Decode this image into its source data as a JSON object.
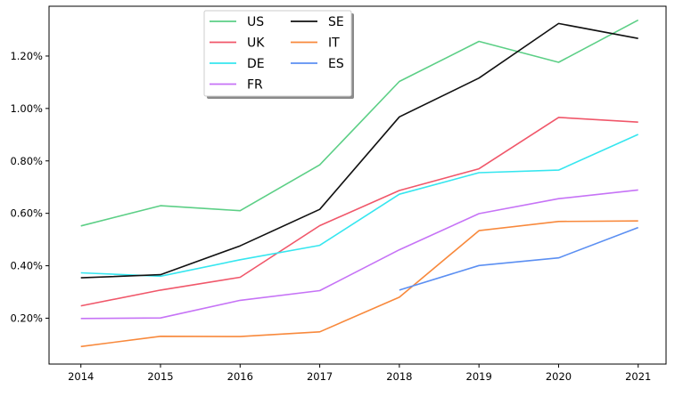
{
  "chart_data": {
    "type": "line",
    "title": "",
    "xlabel": "",
    "ylabel": "",
    "x": [
      2014,
      2015,
      2016,
      2017,
      2018,
      2019,
      2020,
      2021
    ],
    "x_tick_labels": [
      "2014",
      "2015",
      "2016",
      "2017",
      "2018",
      "2019",
      "2020",
      "2021"
    ],
    "y_ticks": [
      0.2,
      0.4,
      0.6,
      0.8,
      1.0,
      1.2
    ],
    "y_tick_labels": [
      "0.20%",
      "0.40%",
      "0.60%",
      "0.80%",
      "1.00%",
      "1.20%"
    ],
    "ylim": [
      0.025,
      1.39
    ],
    "xlim": [
      2013.6,
      2021.35
    ],
    "grid": false,
    "legend_position": "top-center",
    "series": [
      {
        "name": "US",
        "color": "#5ccf86",
        "values": [
          0.552,
          0.629,
          0.61,
          0.785,
          1.103,
          1.256,
          1.176,
          1.337
        ]
      },
      {
        "name": "UK",
        "color": "#f0576a",
        "values": [
          0.247,
          0.307,
          0.356,
          0.553,
          0.687,
          0.77,
          0.966,
          0.948
        ]
      },
      {
        "name": "DE",
        "color": "#36e6ef",
        "values": [
          0.373,
          0.36,
          0.423,
          0.478,
          0.673,
          0.755,
          0.765,
          0.901
        ]
      },
      {
        "name": "FR",
        "color": "#c673f6",
        "values": [
          0.199,
          0.201,
          0.268,
          0.305,
          0.461,
          0.599,
          0.656,
          0.689
        ]
      },
      {
        "name": "SE",
        "color": "#111111",
        "values": [
          0.354,
          0.366,
          0.476,
          0.615,
          0.968,
          1.116,
          1.324,
          1.267
        ]
      },
      {
        "name": "IT",
        "color": "#f8893c",
        "values": [
          0.092,
          0.131,
          0.13,
          0.148,
          0.28,
          0.534,
          0.569,
          0.571
        ]
      },
      {
        "name": "ES",
        "color": "#5b8ff2",
        "values": [
          null,
          null,
          null,
          null,
          0.307,
          0.401,
          0.43,
          0.546
        ]
      }
    ]
  }
}
